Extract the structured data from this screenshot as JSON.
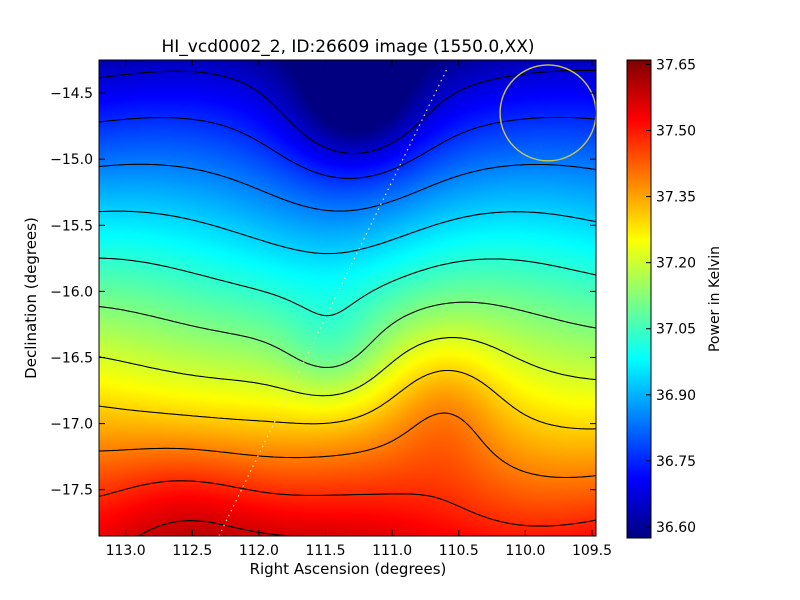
{
  "chart_data": {
    "type": "heatmap",
    "title": "HI_vcd0002_2, ID:26609 image (1550.0,XX)",
    "xlabel": "Right Ascension (degrees)",
    "ylabel": "Declination (degrees)",
    "colorbar_label": "Power in Kelvin",
    "colormap": "jet",
    "x_range": [
      113.2,
      109.47
    ],
    "y_range": [
      -17.85,
      -14.25
    ],
    "x_ticks": [
      "113.0",
      "112.5",
      "112.0",
      "111.5",
      "111.0",
      "110.5",
      "110.0",
      "109.5"
    ],
    "x_tick_values": [
      113.0,
      112.5,
      112.0,
      111.5,
      111.0,
      110.5,
      110.0,
      109.5
    ],
    "y_ticks": [
      "−14.5",
      "−15.0",
      "−15.5",
      "−16.0",
      "−16.5",
      "−17.0",
      "−17.5"
    ],
    "y_tick_values": [
      -14.5,
      -15.0,
      -15.5,
      -16.0,
      -16.5,
      -17.0,
      -17.5
    ],
    "colorbar_range": [
      36.575,
      37.66
    ],
    "colorbar_ticks": [
      "36.60",
      "36.75",
      "36.90",
      "37.05",
      "37.20",
      "37.35",
      "37.50",
      "37.65"
    ],
    "colorbar_tick_values": [
      36.6,
      36.75,
      36.9,
      37.05,
      37.2,
      37.35,
      37.5,
      37.65
    ],
    "contour_count": 11,
    "beam_circle": {
      "ra": 109.83,
      "dec": -14.65,
      "radius_deg": 0.36,
      "color": "#c8c850"
    },
    "dotted_track": {
      "from": [
        112.3,
        -17.85
      ],
      "to": [
        110.58,
        -14.3
      ],
      "color": "#e8e890"
    },
    "contour_color": "#000000"
  }
}
